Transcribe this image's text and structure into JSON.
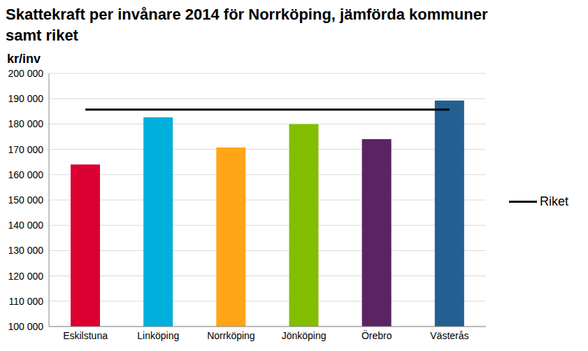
{
  "chart_data": {
    "type": "bar",
    "title": "Skattekraft per invånare 2014 för Norrköping,  jämförda kommuner samt riket",
    "y_label": "kr/inv",
    "categories": [
      "Eskilstuna",
      "Linköping",
      "Norrköping",
      "Jönköping",
      "Örebro",
      "Västerås"
    ],
    "values": [
      164000,
      182700,
      170700,
      180000,
      174000,
      189300
    ],
    "colors": [
      "#dc0032",
      "#00b0dc",
      "#ffa516",
      "#82be00",
      "#5a2364",
      "#235f91"
    ],
    "series": [
      {
        "name": "Riket",
        "type": "line",
        "color": "#000000",
        "values": [
          185700,
          185700,
          185700,
          185700,
          185700,
          185700
        ]
      }
    ],
    "ylim": [
      100000,
      200000
    ],
    "yticks": [
      {
        "value": 100000,
        "label": "100 000"
      },
      {
        "value": 110000,
        "label": "110 000"
      },
      {
        "value": 120000,
        "label": "120 000"
      },
      {
        "value": 130000,
        "label": "130 000"
      },
      {
        "value": 140000,
        "label": "140 000"
      },
      {
        "value": 150000,
        "label": "150 000"
      },
      {
        "value": 160000,
        "label": "160 000"
      },
      {
        "value": 170000,
        "label": "170 000"
      },
      {
        "value": 180000,
        "label": "180 000"
      },
      {
        "value": 190000,
        "label": "190 000"
      },
      {
        "value": 200000,
        "label": "200 000"
      }
    ],
    "grid": true,
    "legend": "right"
  }
}
